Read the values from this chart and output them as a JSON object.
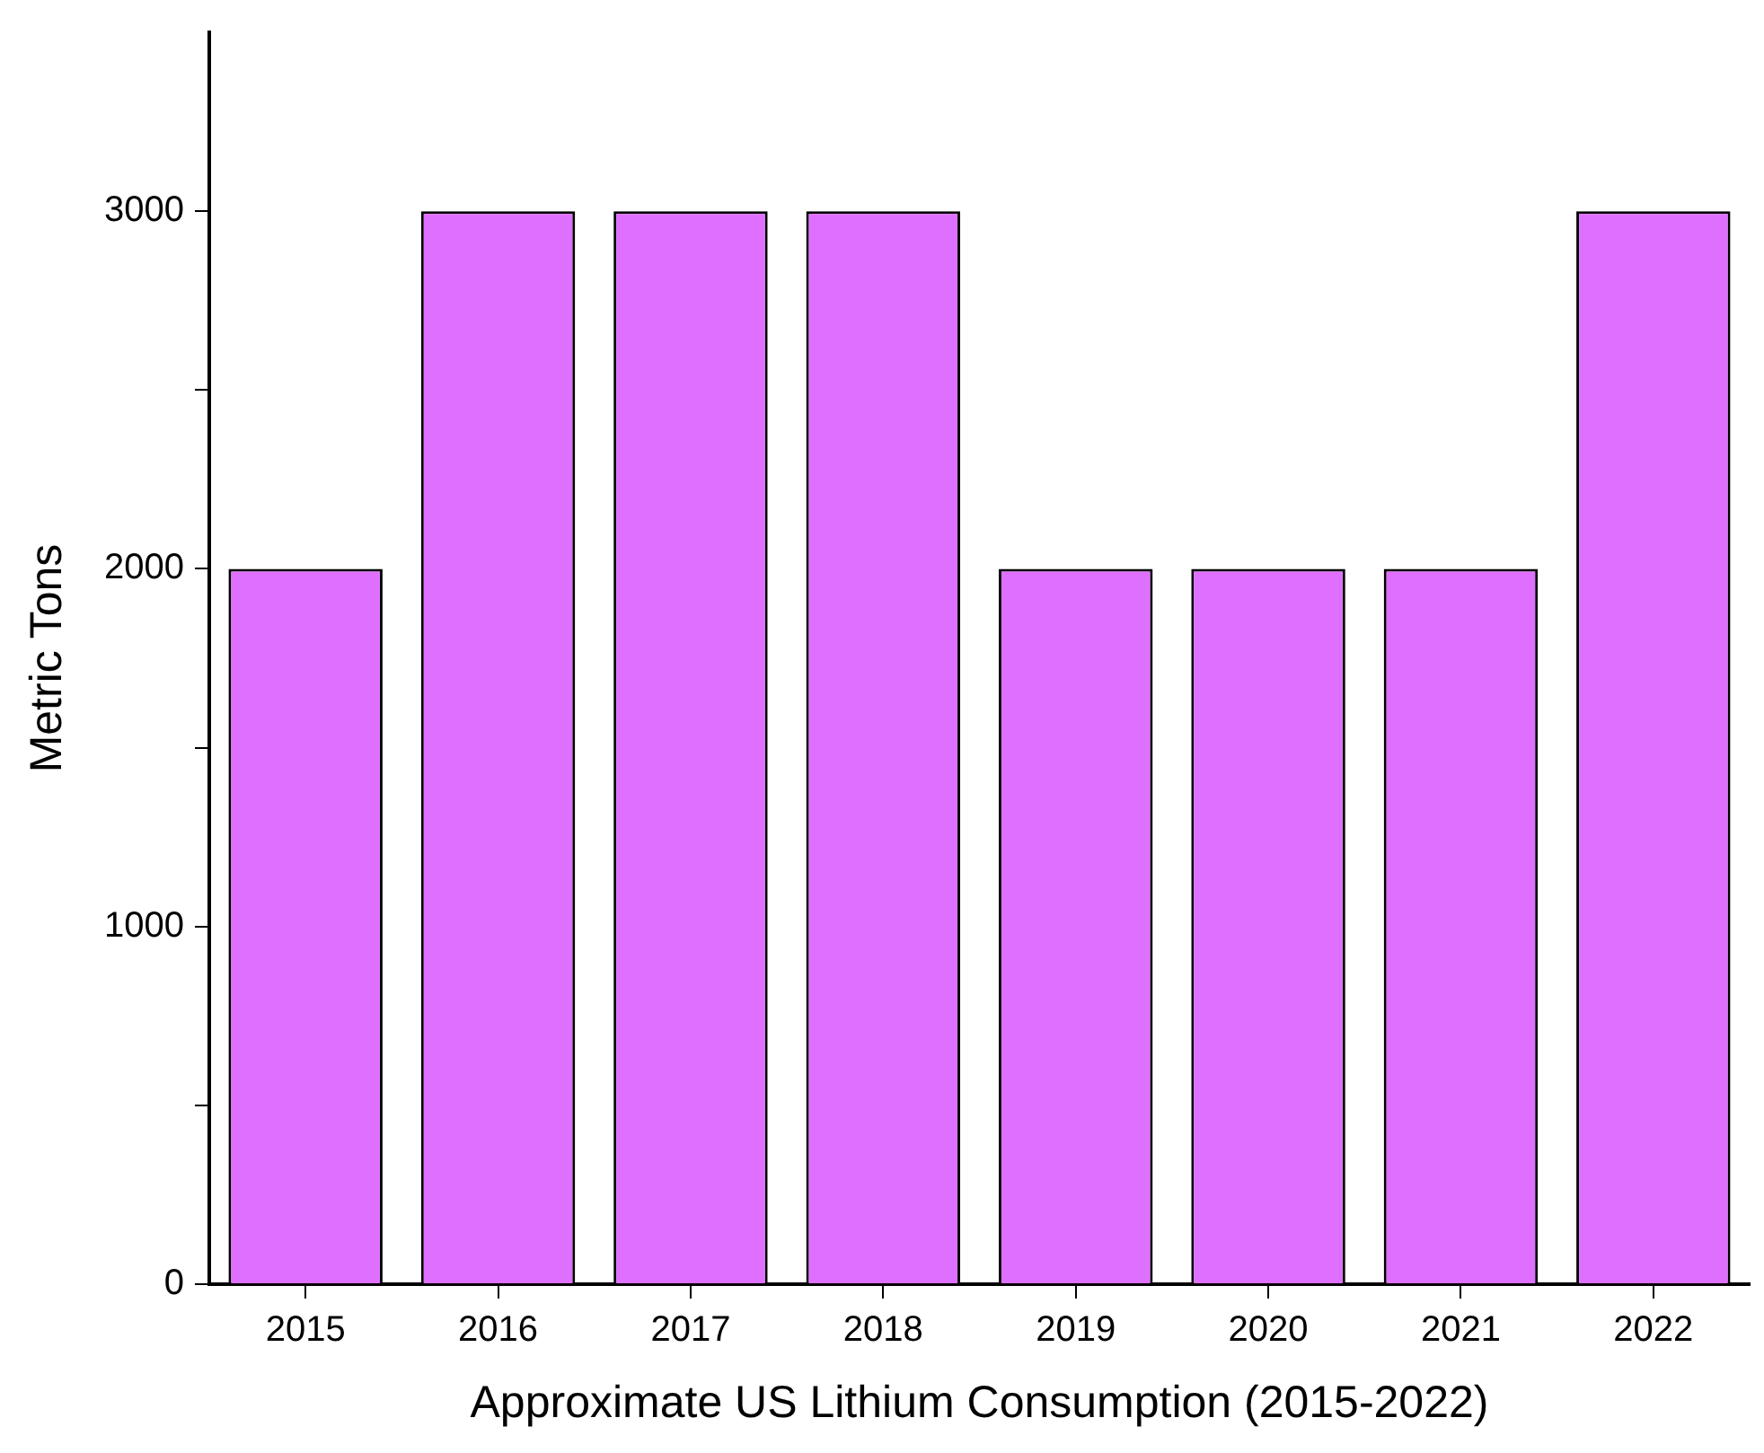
{
  "chart_data": {
    "type": "bar",
    "xlabel": "Approximate US Lithium Consumption (2015-2022)",
    "ylabel": "Metric Tons",
    "categories": [
      "2015",
      "2016",
      "2017",
      "2018",
      "2019",
      "2020",
      "2021",
      "2022"
    ],
    "values": [
      2000,
      3000,
      3000,
      3000,
      2000,
      2000,
      2000,
      3000
    ],
    "color": "#df6fff",
    "ylim": [
      0,
      3500
    ],
    "yticks": [
      0,
      {
        "value": 500,
        "label": null
      },
      1000,
      {
        "value": 1500,
        "label": null
      },
      2000,
      {
        "value": 2500,
        "label": null
      },
      3000
    ],
    "grid": false,
    "legend": false
  }
}
